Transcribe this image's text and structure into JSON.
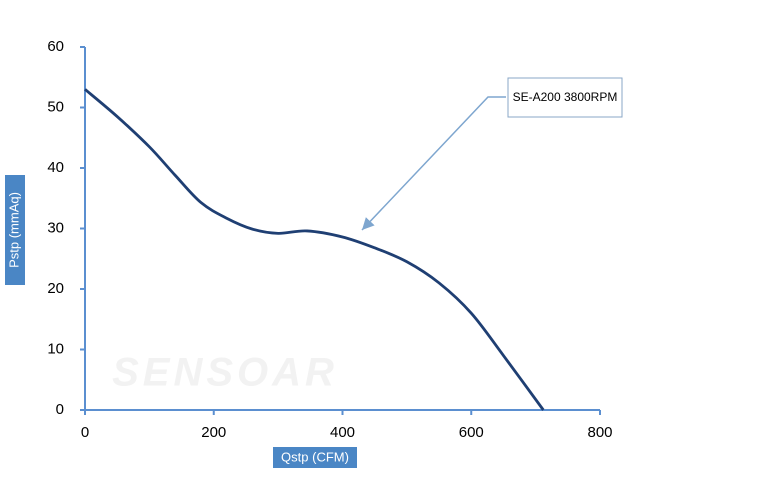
{
  "chart_data": {
    "type": "line",
    "x_label": "Qstp (CFM)",
    "y_label": "Pstp (mmAq)",
    "watermark": "SENSOAR",
    "x": [
      0,
      50,
      100,
      140,
      180,
      220,
      260,
      300,
      345,
      400,
      450,
      500,
      550,
      600,
      650,
      712
    ],
    "series": [
      {
        "name": "SE-A200 3800RPM",
        "color": "#1f3f73",
        "values": [
          53,
          48.5,
          43.5,
          38.8,
          34.3,
          31.7,
          29.9,
          29.2,
          29.6,
          28.6,
          26.8,
          24.5,
          21,
          16,
          9,
          0
        ]
      }
    ],
    "xlim": [
      0,
      800
    ],
    "xticks": [
      0,
      200,
      400,
      600,
      800
    ],
    "ylim": [
      0,
      60
    ],
    "yticks": [
      0,
      10,
      20,
      30,
      40,
      50,
      60
    ],
    "axis_color": "#5b8fd0"
  }
}
